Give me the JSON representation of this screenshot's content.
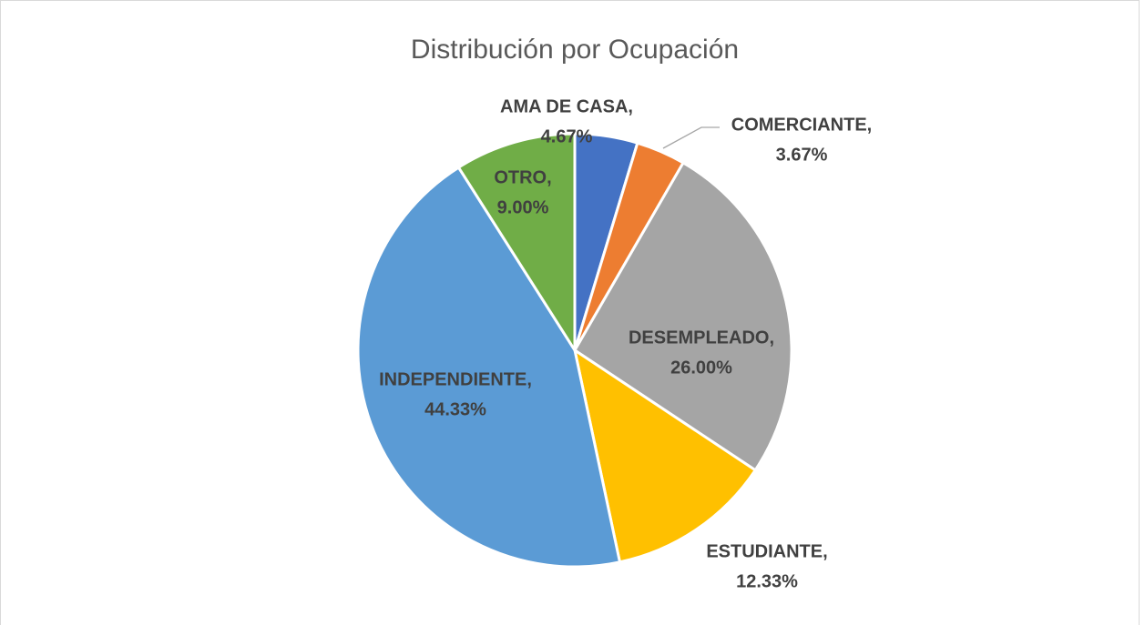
{
  "chart_data": {
    "type": "pie",
    "title": "Distribución por Ocupación",
    "categories": [
      "AMA DE CASA,",
      "COMERCIANTE,",
      "DESEMPLEADO,",
      "ESTUDIANTE,",
      "INDEPENDIENTE,",
      "OTRO,"
    ],
    "values": [
      4.67,
      3.67,
      26.0,
      12.33,
      44.33,
      9.0
    ],
    "value_labels": [
      "4.67%",
      "3.67%",
      "26.00%",
      "12.33%",
      "44.33%",
      "9.00%"
    ],
    "colors": [
      "#4472c4",
      "#ed7d31",
      "#a5a5a5",
      "#ffc000",
      "#5b9bd5",
      "#70ad47"
    ]
  }
}
